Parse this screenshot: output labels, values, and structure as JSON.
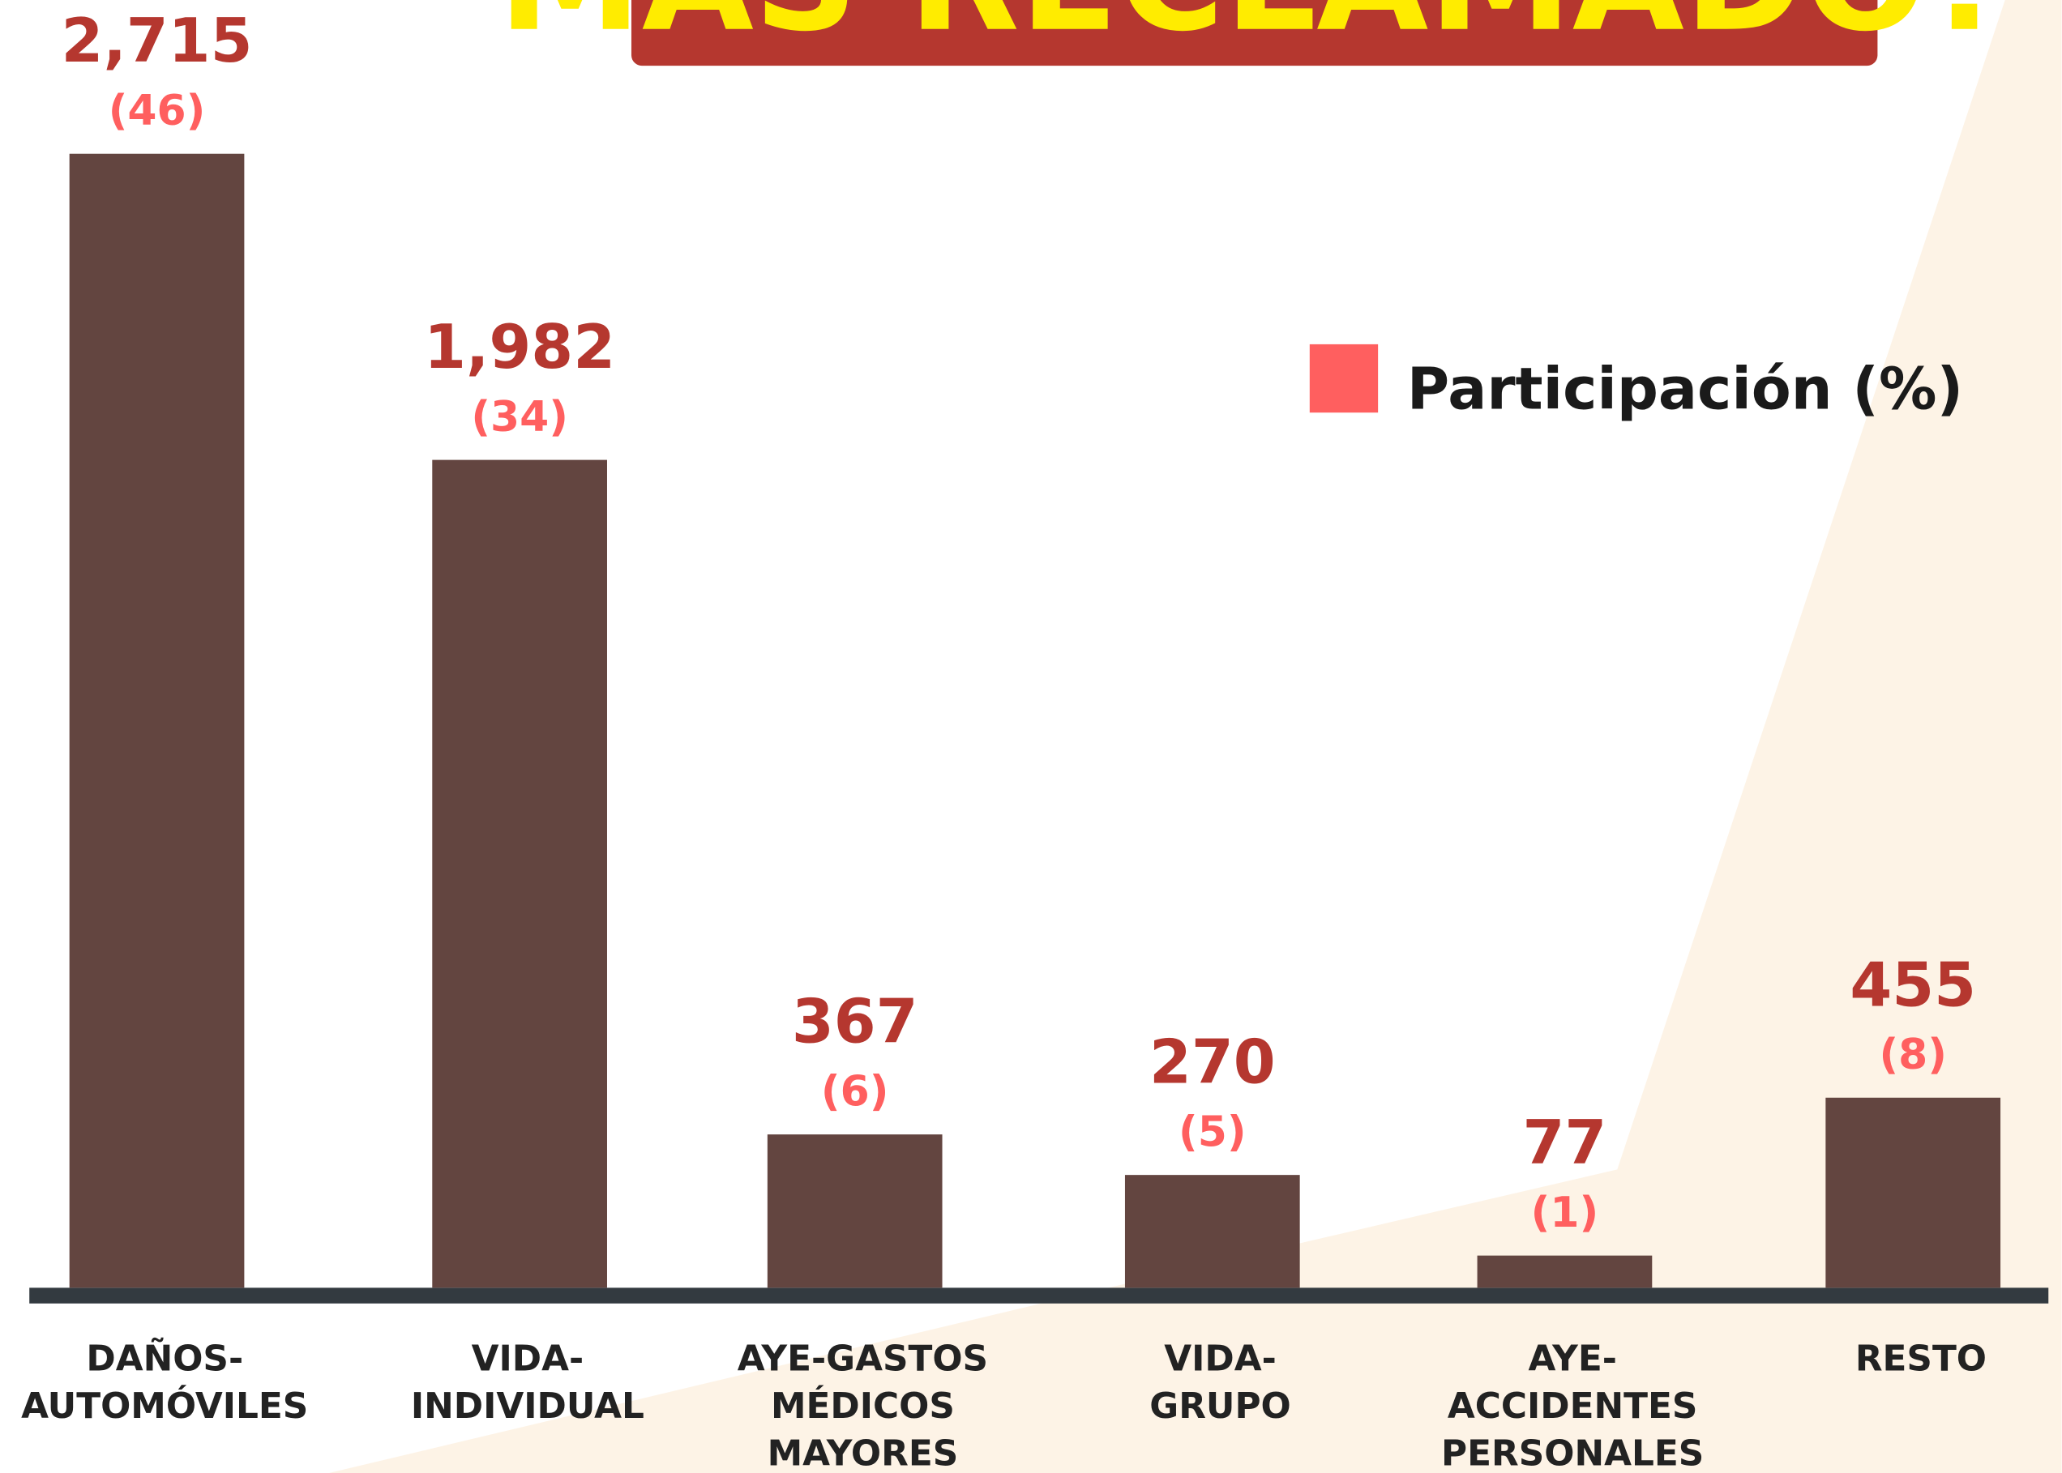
{
  "chart_data": {
    "type": "bar",
    "title": "MÁS RECLAMADO?",
    "categories": [
      [
        "DAÑOS-",
        "AUTOMÓVILES"
      ],
      [
        "VIDA-",
        "INDIVIDUAL"
      ],
      [
        "AYE-GASTOS",
        "MÉDICOS",
        "MAYORES"
      ],
      [
        "VIDA-",
        "GRUPO"
      ],
      [
        "AYE-",
        "ACCIDENTES",
        "PERSONALES"
      ],
      [
        "RESTO"
      ]
    ],
    "series": [
      {
        "values": [
          2715,
          1982,
          367,
          270,
          77,
          455
        ],
        "value_labels": [
          "2,715",
          "1,982",
          "367",
          "270",
          "77",
          "455"
        ],
        "color": "#634540"
      },
      {
        "name": "Participación (%)",
        "color": "#ff5f5f",
        "values": [
          46,
          34,
          6,
          5,
          1,
          8
        ],
        "value_labels": [
          "(46)",
          "(34)",
          "(6)",
          "(5)",
          "(1)",
          "(8)"
        ]
      }
    ],
    "legend": "top-right"
  }
}
